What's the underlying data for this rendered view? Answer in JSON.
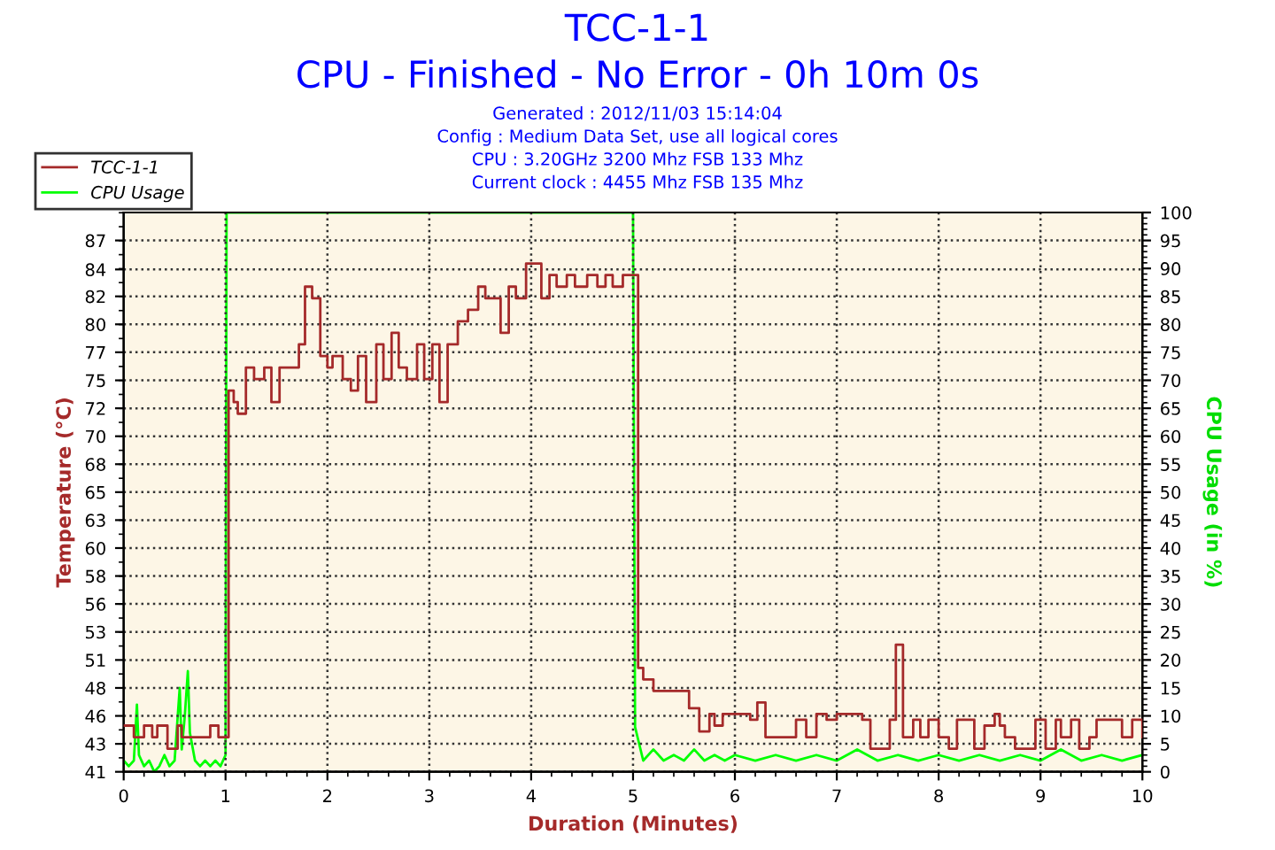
{
  "chart_data": {
    "type": "step",
    "title": "TCC-1-1",
    "subtitle": "CPU - Finished - No Error - 0h 10m 0s",
    "annotations": [
      "Generated : 2012/11/03 15:14:04",
      "Config : Medium Data Set, use all logical cores",
      "CPU : 3.20GHz 3200 Mhz FSB 133 Mhz",
      "Current clock : 4455 Mhz FSB 135 Mhz"
    ],
    "xlabel": "Duration (Minutes)",
    "ylabel": "Temperature (°C)",
    "y2label": "CPU Usage (in %)",
    "xlim": [
      0,
      10
    ],
    "xticks": [
      0,
      1,
      2,
      3,
      4,
      5,
      6,
      7,
      8,
      9,
      10
    ],
    "ylim": [
      41,
      89.42
    ],
    "yticks": [
      {
        "value": 41,
        "label": "41"
      },
      {
        "value": 43.42,
        "label": "43"
      },
      {
        "value": 45.84,
        "label": "46"
      },
      {
        "value": 48.26,
        "label": "48"
      },
      {
        "value": 50.68,
        "label": "51"
      },
      {
        "value": 53.11,
        "label": "53"
      },
      {
        "value": 55.53,
        "label": "56"
      },
      {
        "value": 57.95,
        "label": "58"
      },
      {
        "value": 60.37,
        "label": "60"
      },
      {
        "value": 62.79,
        "label": "63"
      },
      {
        "value": 65.21,
        "label": "65"
      },
      {
        "value": 67.63,
        "label": "68"
      },
      {
        "value": 70.05,
        "label": "70"
      },
      {
        "value": 72.47,
        "label": "72"
      },
      {
        "value": 74.89,
        "label": "75"
      },
      {
        "value": 77.32,
        "label": "77"
      },
      {
        "value": 79.74,
        "label": "80"
      },
      {
        "value": 82.16,
        "label": "82"
      },
      {
        "value": 84.49,
        "label": "84"
      },
      {
        "value": 87.0,
        "label": "87"
      }
    ],
    "y2lim": [
      0,
      100
    ],
    "y2ticks": [
      0,
      5,
      10,
      15,
      20,
      25,
      30,
      35,
      40,
      45,
      50,
      55,
      60,
      65,
      70,
      75,
      80,
      85,
      90,
      95,
      100
    ],
    "grid": true,
    "legend": "top left",
    "line_style": "solid",
    "marker": "none",
    "series": [
      {
        "name": "TCC-1-1",
        "color": "#a52a2a",
        "x": [
          0,
          0.1,
          0.2,
          0.28,
          0.33,
          0.43,
          0.53,
          0.57,
          0.85,
          0.93,
          1.03,
          1.08,
          1.12,
          1.2,
          1.28,
          1.38,
          1.45,
          1.53,
          1.72,
          1.78,
          1.85,
          1.93,
          2.0,
          2.05,
          2.15,
          2.23,
          2.3,
          2.38,
          2.48,
          2.55,
          2.63,
          2.7,
          2.78,
          2.88,
          2.95,
          3.03,
          3.1,
          3.18,
          3.28,
          3.38,
          3.48,
          3.55,
          3.7,
          3.78,
          3.85,
          3.95,
          4.1,
          4.18,
          4.25,
          4.35,
          4.43,
          4.55,
          4.65,
          4.73,
          4.8,
          4.9,
          5.05,
          5.1,
          5.2,
          5.55,
          5.65,
          5.75,
          5.8,
          5.88,
          6.15,
          6.22,
          6.3,
          6.6,
          6.7,
          6.8,
          6.9,
          7.0,
          7.25,
          7.33,
          7.52,
          7.58,
          7.65,
          7.75,
          7.82,
          7.9,
          8.0,
          8.1,
          8.18,
          8.35,
          8.45,
          8.55,
          8.6,
          8.65,
          8.75,
          8.95,
          9.05,
          9.15,
          9.2,
          9.3,
          9.38,
          9.48,
          9.55,
          9.8,
          9.9,
          10
        ],
        "values": [
          45,
          44,
          45,
          44,
          45,
          43,
          45,
          44,
          45,
          44,
          74,
          73,
          72,
          76,
          75,
          76,
          73,
          76,
          78,
          83,
          82,
          77,
          76,
          77,
          75,
          74,
          77,
          73,
          78,
          75,
          79,
          76,
          75,
          78,
          75,
          78,
          73,
          78,
          80,
          81,
          83,
          82,
          79,
          83,
          82,
          85,
          82,
          84,
          83,
          84,
          83,
          84,
          83,
          84,
          83,
          84,
          50,
          49,
          48,
          46.5,
          44.5,
          46,
          45,
          46,
          45.5,
          47,
          44,
          45.5,
          44,
          46,
          45.5,
          46,
          45.5,
          43,
          45.5,
          52,
          44,
          45.5,
          44,
          45.5,
          44,
          43,
          45.5,
          43,
          45,
          46,
          45,
          44,
          43,
          45.5,
          43,
          45.5,
          44,
          45.5,
          43,
          44,
          45.5,
          44,
          45.5,
          44
        ]
      },
      {
        "name": "CPU Usage",
        "color": "#00ff00",
        "type": "line",
        "axis": "y2",
        "x": [
          0,
          0.05,
          0.1,
          0.13,
          0.15,
          0.2,
          0.25,
          0.3,
          0.35,
          0.4,
          0.45,
          0.5,
          0.55,
          0.57,
          0.6,
          0.63,
          0.65,
          0.7,
          0.75,
          0.8,
          0.85,
          0.9,
          0.95,
          1.0,
          1.01,
          4.99,
          5.0,
          5.02,
          5.1,
          5.2,
          5.3,
          5.4,
          5.5,
          5.6,
          5.7,
          5.8,
          5.9,
          6.0,
          6.2,
          6.4,
          6.6,
          6.8,
          7.0,
          7.2,
          7.4,
          7.6,
          7.8,
          8.0,
          8.2,
          8.4,
          8.6,
          8.8,
          9.0,
          9.2,
          9.4,
          9.6,
          9.8,
          10
        ],
        "values": [
          2,
          1,
          2,
          12,
          3,
          1,
          2,
          0,
          1,
          3,
          1,
          2,
          15,
          4,
          10,
          18,
          7,
          2,
          1,
          2,
          1,
          2,
          1,
          3,
          100,
          100,
          100,
          8,
          2,
          4,
          2,
          3,
          2,
          4,
          2,
          3,
          2,
          3,
          2,
          3,
          2,
          3,
          2,
          4,
          2,
          3,
          2,
          3,
          2,
          3,
          2,
          3,
          2,
          4,
          2,
          3,
          2,
          3
        ]
      }
    ]
  }
}
